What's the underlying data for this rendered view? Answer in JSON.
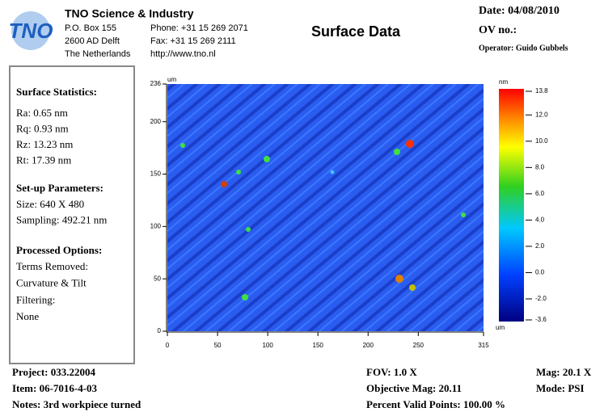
{
  "header": {
    "logo": "TNO",
    "company": "TNO Science & Industry",
    "address": [
      "P.O. Box 155",
      "2600 AD Delft",
      "The Netherlands"
    ],
    "contact": [
      "Phone: +31 15 269 2071",
      "Fax: +31 15 269 2111",
      "http://www.tno.nl"
    ],
    "title": "Surface Data",
    "date": "Date:  04/08/2010",
    "ov": "OV no.:",
    "operator": "Operator: Guido Gubbels"
  },
  "statistics": {
    "heading": "Surface Statistics:",
    "lines": [
      "Ra:  0.65 nm",
      "Rq:  0.93 nm",
      "Rz:  13.23 nm",
      "Rt:  17.39 nm"
    ]
  },
  "setup": {
    "heading": "Set-up Parameters:",
    "lines": [
      "Size: 640 X 480",
      "Sampling:  492.21 nm"
    ]
  },
  "processed": {
    "heading": "Processed Options:",
    "lines": [
      "Terms Removed:",
      "Curvature & Tilt",
      "Filtering:",
      "None"
    ]
  },
  "surface_map": {
    "x_unit": "um",
    "y_unit": "um",
    "z_unit": "nm",
    "xlim": [
      0,
      315
    ],
    "xticks": [
      0,
      50,
      100,
      150,
      200,
      250,
      315
    ],
    "ylim": [
      0,
      236
    ],
    "yticks": [
      0,
      50,
      100,
      150,
      200,
      236
    ],
    "zlim": [
      -3.6,
      13.8
    ],
    "zticks": [
      {
        "value": 13.8,
        "label": "13.8"
      },
      {
        "value": 12,
        "label": "12.0"
      },
      {
        "value": 10,
        "label": "10.0"
      },
      {
        "value": 8,
        "label": "8.0"
      },
      {
        "value": 6,
        "label": "6.0"
      },
      {
        "value": 4,
        "label": "4.0"
      },
      {
        "value": 2,
        "label": "2.0"
      },
      {
        "value": 0,
        "label": "0.0"
      },
      {
        "value": -2,
        "label": "-2.0"
      },
      {
        "value": -3.6,
        "label": "-3.6"
      }
    ]
  },
  "footer": {
    "left": [
      "Project: 033.22004",
      "Item: 06-7016-4-03",
      "Notes: 3rd workpiece turned"
    ],
    "middle": [
      "FOV: 1.0 X",
      "Objective Mag: 20.11",
      "Percent Valid Points: 100.00 %"
    ],
    "right": [
      "Mag:  20.1 X",
      "Mode:  PSI"
    ]
  }
}
